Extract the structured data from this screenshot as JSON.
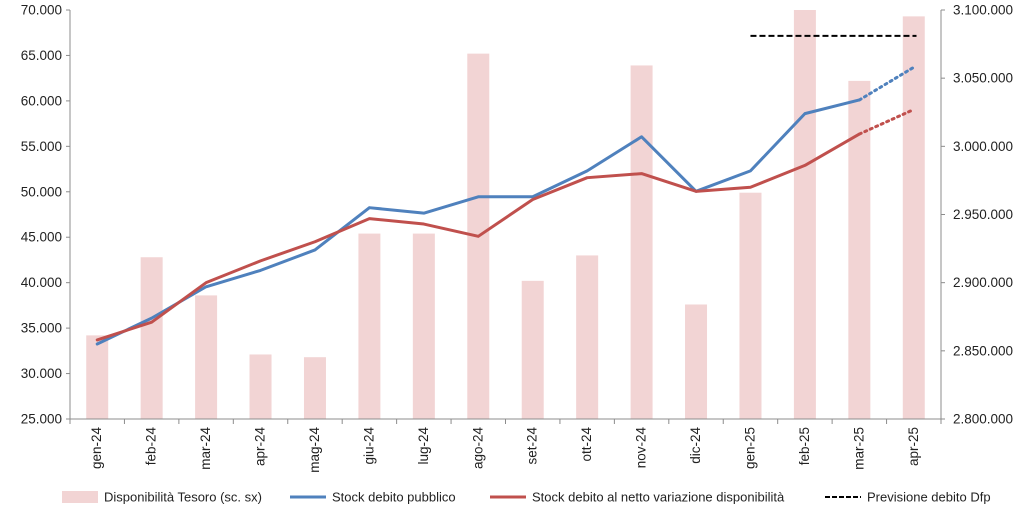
{
  "chart_data": {
    "type": "bar+line",
    "categories": [
      "gen-24",
      "feb-24",
      "mar-24",
      "apr-24",
      "mag-24",
      "giu-24",
      "lug-24",
      "ago-24",
      "set-24",
      "ott-24",
      "nov-24",
      "dic-24",
      "gen-25",
      "feb-25",
      "mar-25",
      "apr-25"
    ],
    "left_axis": {
      "ylim": [
        25000,
        70000
      ],
      "ticks": [
        "25.000",
        "30.000",
        "35.000",
        "40.000",
        "45.000",
        "50.000",
        "55.000",
        "60.000",
        "65.000",
        "70.000"
      ]
    },
    "right_axis": {
      "ylim": [
        2800000,
        3100000
      ],
      "ticks": [
        "2.800.000",
        "2.850.000",
        "2.900.000",
        "2.950.000",
        "3.000.000",
        "3.050.000",
        "3.100.000"
      ]
    },
    "series": [
      {
        "name": "Disponibilità Tesoro (sc. sx)",
        "kind": "bar",
        "axis": "left",
        "color": "#f2d4d4",
        "values": [
          34200,
          42800,
          38600,
          32100,
          31800,
          45400,
          45400,
          65200,
          40200,
          43000,
          63900,
          37600,
          49900,
          70000,
          62200,
          69300
        ]
      },
      {
        "name": "Stock debito pubblico",
        "kind": "line",
        "axis": "right",
        "color": "#4f81bd",
        "values": [
          2855000,
          2874000,
          2897000,
          2909000,
          2924000,
          2955000,
          2951000,
          2963000,
          2963000,
          2982000,
          3007000,
          2967000,
          2982000,
          3024000,
          3034000,
          null
        ],
        "forecast_values": [
          null,
          null,
          null,
          null,
          null,
          null,
          null,
          null,
          null,
          null,
          null,
          null,
          null,
          null,
          3034000,
          3058000
        ]
      },
      {
        "name": "Stock debito al netto variazione disponibilità",
        "kind": "line",
        "axis": "right",
        "color": "#c0504d",
        "values": [
          2858000,
          2871000,
          2900000,
          2916000,
          2930000,
          2947000,
          2943000,
          2934000,
          2961000,
          2977000,
          2980000,
          2967000,
          2970000,
          2986000,
          3009000,
          null
        ],
        "forecast_values": [
          null,
          null,
          null,
          null,
          null,
          null,
          null,
          null,
          null,
          null,
          null,
          null,
          null,
          null,
          3009000,
          3027000
        ]
      },
      {
        "name": "Previsione debito Dfp",
        "kind": "hline",
        "axis": "right",
        "color": "#000000",
        "value": 3081000,
        "x_range": [
          "gen-25",
          "apr-25"
        ]
      }
    ],
    "legend_placement": "bottom",
    "grid": false
  }
}
